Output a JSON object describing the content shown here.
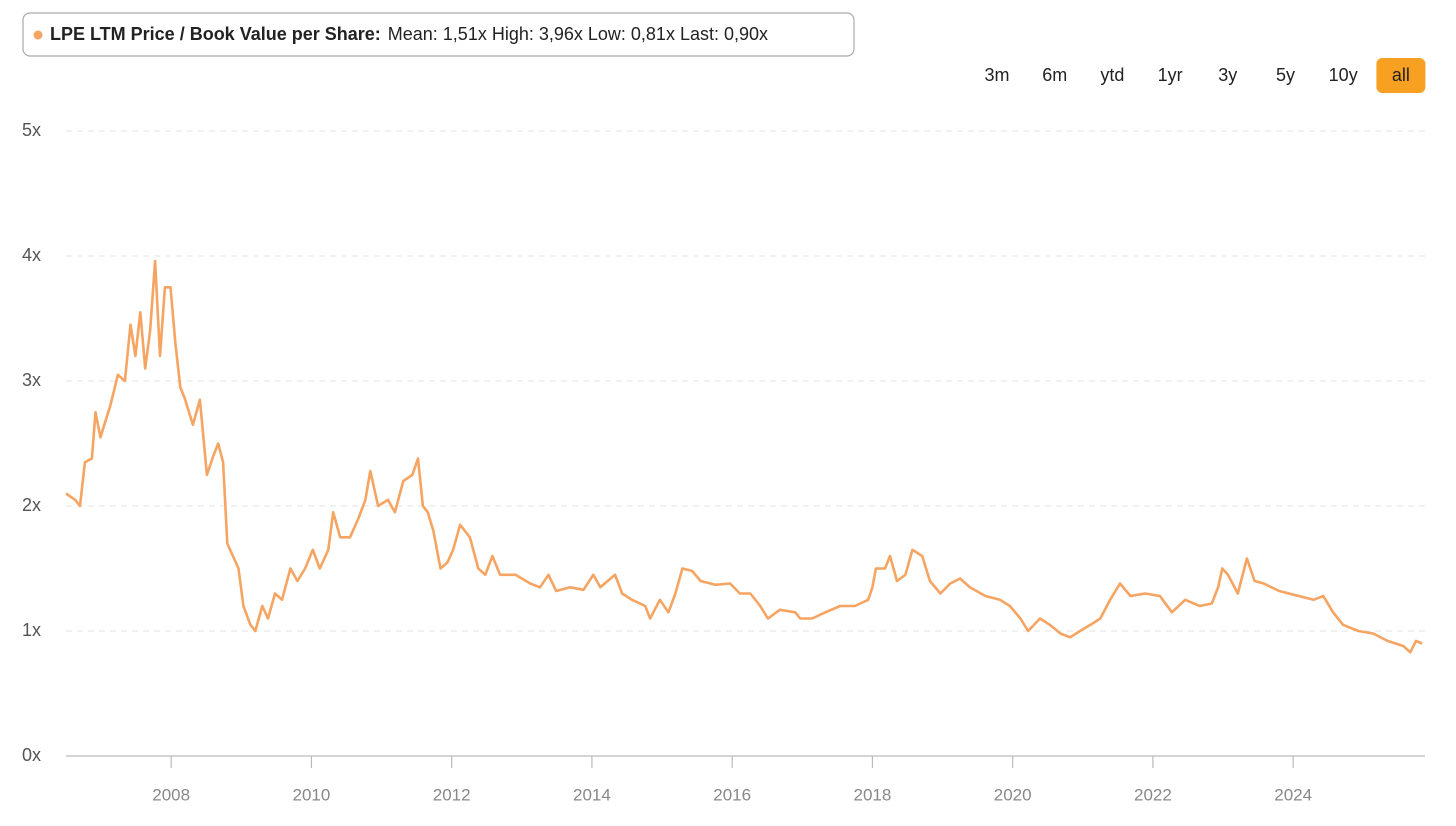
{
  "chart_data": {
    "type": "line",
    "series": [
      {
        "name": "LPE LTM Price / Book Value per Share:",
        "color": "#f5a462",
        "values": [
          2.1,
          2.05,
          2.0,
          2.35,
          2.38,
          2.75,
          2.55,
          2.8,
          3.05,
          3.0,
          3.45,
          3.2,
          3.55,
          3.1,
          3.4,
          3.96,
          3.2,
          3.75,
          3.75,
          3.3,
          2.95,
          2.85,
          2.65,
          2.85,
          2.25,
          2.4,
          2.5,
          2.35,
          1.7,
          1.6,
          1.5,
          1.2,
          1.05,
          1.0,
          1.2,
          1.1,
          1.3,
          1.25,
          1.5,
          1.4,
          1.5,
          1.65,
          1.5,
          1.65,
          1.95,
          1.75,
          1.75,
          1.9,
          2.05,
          2.28,
          2.0,
          2.05,
          1.95,
          2.2,
          2.25,
          2.38,
          2.0,
          1.95,
          1.8,
          1.5,
          1.55,
          1.65,
          1.85,
          1.75,
          1.5,
          1.45,
          1.6,
          1.45,
          1.45,
          1.38,
          1.35,
          1.45,
          1.32,
          1.35,
          1.33,
          1.45,
          1.35,
          1.45,
          1.3,
          1.25,
          1.2,
          1.1,
          1.25,
          1.15,
          1.3,
          1.5,
          1.48,
          1.4,
          1.37,
          1.38,
          1.3,
          1.3,
          1.2,
          1.1,
          1.17,
          1.15,
          1.1,
          1.1,
          1.15,
          1.2,
          1.2,
          1.25,
          1.35,
          1.5,
          1.5,
          1.6,
          1.4,
          1.45,
          1.65,
          1.6,
          1.4,
          1.3,
          1.38,
          1.42,
          1.35,
          1.28,
          1.25,
          1.2,
          1.1,
          1.0,
          1.1,
          1.05,
          0.98,
          0.95,
          1.0,
          1.05,
          1.1,
          1.25,
          1.38,
          1.28,
          1.3,
          1.28,
          1.15,
          1.25,
          1.2,
          1.22,
          1.35,
          1.5,
          1.45,
          1.3,
          1.58,
          1.4,
          1.38,
          1.32,
          1.28,
          1.25,
          1.28,
          1.15,
          1.05,
          1.0,
          0.98,
          0.92,
          0.88,
          0.83,
          0.92,
          0.9
        ]
      }
    ],
    "x": [
      2006.5,
      2006.63,
      2006.7,
      2006.77,
      2006.87,
      2006.92,
      2006.99,
      2007.13,
      2007.24,
      2007.34,
      2007.42,
      2007.49,
      2007.56,
      2007.63,
      2007.7,
      2007.77,
      2007.84,
      2007.91,
      2007.99,
      2008.06,
      2008.13,
      2008.2,
      2008.31,
      2008.41,
      2008.51,
      2008.6,
      2008.67,
      2008.74,
      2008.8,
      2008.88,
      2008.96,
      2009.03,
      2009.13,
      2009.2,
      2009.3,
      2009.38,
      2009.48,
      2009.58,
      2009.7,
      2009.8,
      2009.91,
      2010.02,
      2010.12,
      2010.24,
      2010.31,
      2010.41,
      2010.55,
      2010.67,
      2010.77,
      2010.84,
      2010.95,
      2011.09,
      2011.19,
      2011.31,
      2011.44,
      2011.52,
      2011.59,
      2011.66,
      2011.74,
      2011.84,
      2011.94,
      2012.02,
      2012.12,
      2012.26,
      2012.38,
      2012.48,
      2012.58,
      2012.69,
      2012.91,
      2013.12,
      2013.26,
      2013.38,
      2013.49,
      2013.69,
      2013.88,
      2014.02,
      2014.12,
      2014.33,
      2014.43,
      2014.57,
      2014.76,
      2014.83,
      2014.97,
      2015.09,
      2015.19,
      2015.29,
      2015.43,
      2015.55,
      2015.76,
      2015.97,
      2016.11,
      2016.26,
      2016.4,
      2016.51,
      2016.68,
      2016.9,
      2016.97,
      2017.14,
      2017.33,
      2017.54,
      2017.75,
      2017.94,
      2018.0,
      2018.05,
      2018.18,
      2018.25,
      2018.35,
      2018.47,
      2018.57,
      2018.71,
      2018.82,
      2018.97,
      2019.11,
      2019.25,
      2019.39,
      2019.61,
      2019.82,
      2019.96,
      2020.11,
      2020.22,
      2020.39,
      2020.53,
      2020.68,
      2020.82,
      2020.96,
      2021.11,
      2021.25,
      2021.39,
      2021.53,
      2021.68,
      2021.89,
      2022.1,
      2022.27,
      2022.46,
      2022.67,
      2022.84,
      2022.93,
      2022.99,
      2023.07,
      2023.21,
      2023.34,
      2023.45,
      2023.58,
      2023.8,
      2024.08,
      2024.29,
      2024.43,
      2024.57,
      2024.71,
      2024.93,
      2025.14,
      2025.35,
      2025.57,
      2025.67,
      2025.75,
      2025.84
    ],
    "legend_stats": "Mean: 1,51x High: 3,96x Low: 0,81x Last: 0,90x",
    "xlim": [
      2006.5,
      2025.88
    ],
    "xticks": [
      2008,
      2010,
      2012,
      2014,
      2016,
      2018,
      2020,
      2022,
      2024
    ],
    "ylim": [
      0,
      5
    ],
    "yticks": [
      {
        "value": 0,
        "label": "0x"
      },
      {
        "value": 1,
        "label": "1x"
      },
      {
        "value": 2,
        "label": "2x"
      },
      {
        "value": 3,
        "label": "3x"
      },
      {
        "value": 4,
        "label": "4x"
      },
      {
        "value": 5,
        "label": "5x"
      }
    ],
    "grid": true
  },
  "range_buttons": [
    "3m",
    "6m",
    "ytd",
    "1yr",
    "3y",
    "5y",
    "10y",
    "all"
  ],
  "selected_range_index": 7
}
